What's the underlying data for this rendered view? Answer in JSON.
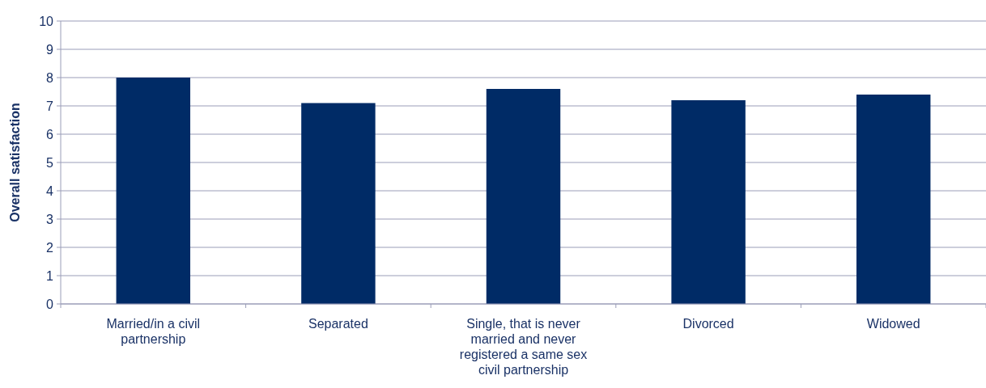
{
  "chart_data": {
    "type": "bar",
    "ylabel": "Overall satisfaction",
    "categories": [
      "Married/in a civil partnership",
      "Separated",
      "Single, that is never married and never registered a same sex civil partnership",
      "Divorced",
      "Widowed"
    ],
    "values": [
      8.0,
      7.1,
      7.6,
      7.2,
      7.4
    ],
    "color": "#002b66",
    "ylim": [
      0,
      10
    ],
    "yticks": [
      0,
      1,
      2,
      3,
      4,
      5,
      6,
      7,
      8,
      9,
      10
    ],
    "grid": "y"
  }
}
